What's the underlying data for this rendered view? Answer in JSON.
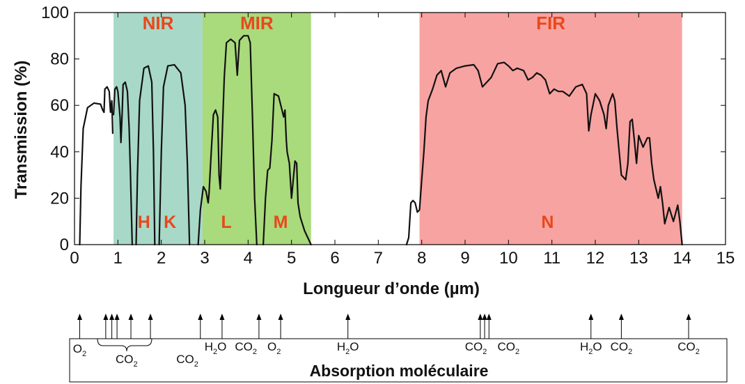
{
  "chart_data": {
    "type": "line",
    "xlabel": "Longueur d’onde (µm)",
    "ylabel": "Transmission (%)",
    "xlim": [
      0,
      15
    ],
    "ylim": [
      0,
      100
    ],
    "x_ticks": [
      0,
      1,
      2,
      3,
      4,
      5,
      6,
      7,
      8,
      9,
      10,
      11,
      12,
      13,
      14,
      15
    ],
    "y_ticks": [
      0,
      20,
      40,
      60,
      80,
      100
    ],
    "grid": false,
    "bands": [
      {
        "label": "NIR",
        "x0": 0.9,
        "x1": 2.95,
        "color": "#a8d8c8"
      },
      {
        "label": "MIR",
        "x0": 2.95,
        "x1": 5.45,
        "color": "#a9da7b"
      },
      {
        "label": "FIR",
        "x0": 7.95,
        "x1": 14.0,
        "color": "#f7a3a1"
      }
    ],
    "band_label_color": "#e8481c",
    "filters": [
      {
        "label": "H",
        "x": 1.6
      },
      {
        "label": "K",
        "x": 2.2
      },
      {
        "label": "L",
        "x": 3.5
      },
      {
        "label": "M",
        "x": 4.75
      },
      {
        "label": "N",
        "x": 10.9
      }
    ],
    "series": [
      {
        "line_color": "#111111",
        "segments": [
          [
            [
              0.12,
              0
            ],
            [
              0.15,
              25
            ],
            [
              0.2,
              50
            ],
            [
              0.3,
              59
            ],
            [
              0.45,
              61
            ],
            [
              0.6,
              60.5
            ],
            [
              0.65,
              58
            ],
            [
              0.68,
              57
            ],
            [
              0.7,
              67
            ],
            [
              0.75,
              68
            ],
            [
              0.8,
              66
            ],
            [
              0.83,
              57
            ],
            [
              0.86,
              62
            ],
            [
              0.88,
              48
            ]
          ],
          [
            [
              0.9,
              56
            ],
            [
              0.93,
              67
            ],
            [
              0.97,
              68
            ],
            [
              1.0,
              66
            ],
            [
              1.05,
              55
            ],
            [
              1.07,
              44
            ],
            [
              1.1,
              58
            ],
            [
              1.12,
              69
            ],
            [
              1.17,
              70
            ],
            [
              1.22,
              66
            ],
            [
              1.26,
              50
            ],
            [
              1.29,
              30
            ],
            [
              1.33,
              0
            ]
          ],
          [
            [
              1.42,
              0
            ],
            [
              1.45,
              30
            ],
            [
              1.5,
              62
            ],
            [
              1.6,
              76
            ],
            [
              1.7,
              77
            ],
            [
              1.78,
              70
            ],
            [
              1.82,
              40
            ],
            [
              1.85,
              0
            ]
          ],
          [
            [
              1.95,
              0
            ],
            [
              2.0,
              40
            ],
            [
              2.05,
              68
            ],
            [
              2.15,
              77
            ],
            [
              2.3,
              77.5
            ],
            [
              2.45,
              74
            ],
            [
              2.55,
              60
            ],
            [
              2.6,
              35
            ],
            [
              2.65,
              0
            ]
          ],
          [
            [
              2.85,
              0
            ],
            [
              2.9,
              15
            ],
            [
              2.97,
              25
            ],
            [
              3.03,
              23
            ],
            [
              3.08,
              18
            ],
            [
              3.1,
              22
            ],
            [
              3.15,
              40
            ],
            [
              3.2,
              56
            ],
            [
              3.25,
              58
            ],
            [
              3.3,
              55
            ],
            [
              3.33,
              30
            ],
            [
              3.36,
              24
            ],
            [
              3.4,
              45
            ],
            [
              3.45,
              72
            ],
            [
              3.5,
              87
            ],
            [
              3.6,
              88.5
            ],
            [
              3.7,
              87
            ],
            [
              3.75,
              73
            ],
            [
              3.8,
              88
            ],
            [
              3.9,
              90
            ],
            [
              4.0,
              90
            ],
            [
              4.05,
              87
            ],
            [
              4.1,
              55
            ],
            [
              4.15,
              20
            ],
            [
              4.2,
              0
            ]
          ],
          [
            [
              4.35,
              0
            ],
            [
              4.4,
              20
            ],
            [
              4.45,
              32
            ],
            [
              4.5,
              33
            ],
            [
              4.55,
              45
            ],
            [
              4.6,
              65
            ],
            [
              4.7,
              64
            ],
            [
              4.78,
              58
            ],
            [
              4.82,
              55
            ],
            [
              4.85,
              58
            ],
            [
              4.88,
              45
            ],
            [
              4.9,
              40
            ],
            [
              4.95,
              35
            ],
            [
              5.0,
              20
            ],
            [
              5.05,
              30
            ],
            [
              5.08,
              36
            ],
            [
              5.12,
              35
            ],
            [
              5.15,
              18
            ],
            [
              5.2,
              12
            ],
            [
              5.3,
              6
            ],
            [
              5.45,
              0
            ]
          ]
        ]
      },
      {
        "line_color": "#111111",
        "segments": [
          [
            [
              7.65,
              0
            ],
            [
              7.7,
              3
            ],
            [
              7.75,
              18
            ],
            [
              7.8,
              19
            ],
            [
              7.85,
              18
            ],
            [
              7.9,
              14
            ],
            [
              7.95,
              15
            ],
            [
              8.0,
              28
            ],
            [
              8.05,
              40
            ],
            [
              8.1,
              55
            ],
            [
              8.15,
              62
            ],
            [
              8.25,
              67
            ],
            [
              8.35,
              73
            ],
            [
              8.45,
              75
            ],
            [
              8.55,
              68
            ],
            [
              8.65,
              74
            ],
            [
              8.8,
              76
            ],
            [
              9.0,
              77
            ],
            [
              9.2,
              77.5
            ],
            [
              9.3,
              75
            ],
            [
              9.4,
              68
            ],
            [
              9.5,
              70
            ],
            [
              9.6,
              72
            ],
            [
              9.75,
              78
            ],
            [
              9.9,
              78.5
            ],
            [
              10.0,
              77
            ],
            [
              10.1,
              75
            ],
            [
              10.2,
              76
            ],
            [
              10.35,
              75
            ],
            [
              10.45,
              71
            ],
            [
              10.55,
              72
            ],
            [
              10.65,
              74
            ],
            [
              10.75,
              73
            ],
            [
              10.85,
              71
            ],
            [
              10.95,
              65
            ],
            [
              11.05,
              67
            ],
            [
              11.15,
              66
            ],
            [
              11.25,
              66
            ],
            [
              11.4,
              64
            ],
            [
              11.55,
              68
            ],
            [
              11.7,
              69
            ],
            [
              11.8,
              65
            ],
            [
              11.85,
              49
            ],
            [
              11.9,
              56
            ],
            [
              12.0,
              65
            ],
            [
              12.1,
              62
            ],
            [
              12.2,
              56
            ],
            [
              12.25,
              50
            ],
            [
              12.3,
              60
            ],
            [
              12.4,
              65
            ],
            [
              12.45,
              62
            ],
            [
              12.5,
              50
            ],
            [
              12.55,
              40
            ],
            [
              12.6,
              30
            ],
            [
              12.7,
              28
            ],
            [
              12.75,
              35
            ],
            [
              12.8,
              53
            ],
            [
              12.85,
              54
            ],
            [
              12.9,
              45
            ],
            [
              12.95,
              35
            ],
            [
              13.0,
              47
            ],
            [
              13.1,
              42
            ],
            [
              13.2,
              46
            ],
            [
              13.25,
              46
            ],
            [
              13.3,
              35
            ],
            [
              13.35,
              28
            ],
            [
              13.45,
              20
            ],
            [
              13.5,
              25
            ],
            [
              13.55,
              18
            ],
            [
              13.6,
              9
            ],
            [
              13.7,
              16
            ],
            [
              13.8,
              10
            ],
            [
              13.9,
              17
            ],
            [
              13.95,
              10
            ],
            [
              14.0,
              0
            ]
          ]
        ]
      }
    ]
  },
  "absorption": {
    "title": "Absorption moléculaire",
    "arrows_x": [
      0.12,
      0.72,
      0.86,
      0.98,
      1.3,
      1.75,
      2.9,
      3.4,
      4.25,
      4.75,
      6.3,
      9.35,
      9.45,
      9.55,
      11.9,
      12.6,
      14.15
    ],
    "labels": [
      {
        "text": "O",
        "sub": "2",
        "x": 0.12,
        "row": 1
      },
      {
        "text": "CO",
        "sub": "2",
        "x": 1.2,
        "row": 2
      },
      {
        "text": "CO",
        "sub": "2",
        "x": 2.6,
        "row": 2
      },
      {
        "text": "H",
        "sub": "2",
        "tail": "O",
        "x": 3.25,
        "row": 0
      },
      {
        "text": "CO",
        "sub": "2",
        "x": 3.95,
        "row": 0
      },
      {
        "text": "O",
        "sub": "2",
        "x": 4.6,
        "row": 0
      },
      {
        "text": "H",
        "sub": "2",
        "tail": "O",
        "x": 6.3,
        "row": 0
      },
      {
        "text": "CO",
        "sub": "2",
        "x": 9.25,
        "row": 0
      },
      {
        "text": "CO",
        "sub": "2",
        "x": 10.0,
        "row": 0
      },
      {
        "text": "H",
        "sub": "2",
        "tail": "O",
        "x": 11.9,
        "row": 0
      },
      {
        "text": "CO",
        "sub": "2",
        "x": 12.6,
        "row": 0
      },
      {
        "text": "CO",
        "sub": "2",
        "x": 14.15,
        "row": 0
      }
    ]
  }
}
